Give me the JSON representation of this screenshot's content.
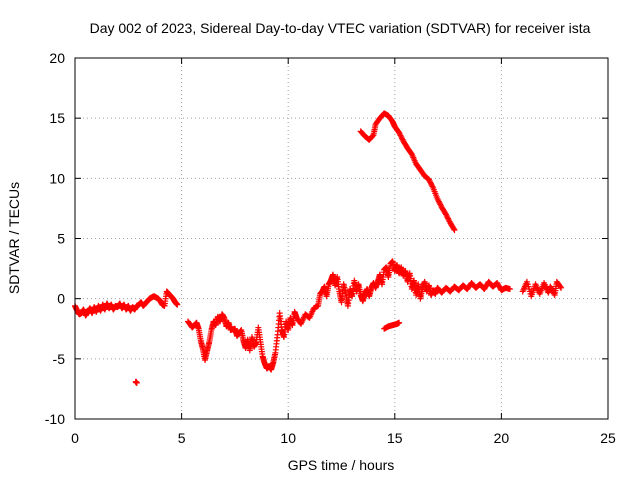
{
  "chart_data": {
    "type": "scatter",
    "title": "Day 002 of 2023, Sidereal Day-to-day VTEC variation (SDTVAR) for receiver ista",
    "xlabel": "GPS time / hours",
    "ylabel": "SDTVAR / TECUs",
    "xlim": [
      0,
      25
    ],
    "ylim": [
      -10,
      20
    ],
    "xticks": [
      0,
      5,
      10,
      15,
      20,
      25
    ],
    "yticks": [
      -10,
      -5,
      0,
      5,
      10,
      15,
      20
    ],
    "grid": true,
    "marker": "+",
    "color": "#ff0000",
    "series": [
      {
        "name": "SDTVAR",
        "points": [
          [
            0.0,
            -0.6
          ],
          [
            0.1,
            -1.0
          ],
          [
            0.2,
            -1.3
          ],
          [
            0.3,
            -1.2
          ],
          [
            0.4,
            -0.9
          ],
          [
            0.5,
            -1.4
          ],
          [
            0.6,
            -1.1
          ],
          [
            0.7,
            -0.8
          ],
          [
            0.8,
            -1.2
          ],
          [
            0.9,
            -0.7
          ],
          [
            1.0,
            -1.1
          ],
          [
            1.1,
            -0.6
          ],
          [
            1.2,
            -1.0
          ],
          [
            1.3,
            -0.5
          ],
          [
            1.4,
            -0.9
          ],
          [
            1.5,
            -0.4
          ],
          [
            1.6,
            -0.8
          ],
          [
            1.7,
            -0.5
          ],
          [
            1.8,
            -0.9
          ],
          [
            1.9,
            -0.6
          ],
          [
            2.0,
            -0.7
          ],
          [
            2.1,
            -0.4
          ],
          [
            2.2,
            -0.8
          ],
          [
            2.3,
            -0.5
          ],
          [
            2.4,
            -0.9
          ],
          [
            2.5,
            -0.6
          ],
          [
            2.6,
            -1.0
          ],
          [
            2.7,
            -0.7
          ],
          [
            2.8,
            -0.9
          ],
          [
            2.9,
            -0.6
          ],
          [
            3.0,
            -0.5
          ],
          [
            3.1,
            -0.3
          ],
          [
            3.2,
            -0.6
          ],
          [
            3.3,
            -0.4
          ],
          [
            3.4,
            -0.2
          ],
          [
            3.5,
            0.0
          ],
          [
            3.6,
            0.1
          ],
          [
            3.7,
            0.2
          ],
          [
            3.8,
            0.1
          ],
          [
            3.9,
            0.0
          ],
          [
            4.0,
            -0.2
          ],
          [
            4.1,
            -0.5
          ],
          [
            4.2,
            -0.6
          ],
          [
            4.3,
            0.6
          ],
          [
            4.4,
            0.4
          ],
          [
            4.5,
            0.2
          ],
          [
            4.6,
            0.0
          ],
          [
            4.7,
            -0.3
          ],
          [
            4.8,
            -0.5
          ],
          [
            2.85,
            -6.9
          ],
          [
            2.9,
            -7.0
          ],
          [
            5.3,
            -1.9
          ],
          [
            5.5,
            -2.4
          ],
          [
            5.7,
            -2.0
          ],
          [
            5.8,
            -2.5
          ],
          [
            5.9,
            -3.5
          ],
          [
            6.0,
            -4.2
          ],
          [
            6.1,
            -5.1
          ],
          [
            6.2,
            -4.3
          ],
          [
            6.3,
            -3.6
          ],
          [
            6.4,
            -2.6
          ],
          [
            6.5,
            -1.9
          ],
          [
            6.6,
            -2.2
          ],
          [
            6.7,
            -1.5
          ],
          [
            6.8,
            -1.9
          ],
          [
            6.9,
            -1.3
          ],
          [
            7.0,
            -1.6
          ],
          [
            7.1,
            -2.3
          ],
          [
            7.2,
            -2.0
          ],
          [
            7.3,
            -2.6
          ],
          [
            7.5,
            -2.5
          ],
          [
            7.6,
            -3.1
          ],
          [
            7.8,
            -2.6
          ],
          [
            7.9,
            -3.5
          ],
          [
            8.0,
            -4.1
          ],
          [
            8.1,
            -3.4
          ],
          [
            8.2,
            -4.3
          ],
          [
            8.3,
            -3.2
          ],
          [
            8.4,
            -4.0
          ],
          [
            8.5,
            -3.6
          ],
          [
            8.6,
            -2.4
          ],
          [
            8.7,
            -3.6
          ],
          [
            8.8,
            -4.8
          ],
          [
            8.9,
            -5.4
          ],
          [
            9.0,
            -5.8
          ],
          [
            9.1,
            -5.6
          ],
          [
            9.2,
            -5.9
          ],
          [
            9.3,
            -5.3
          ],
          [
            9.4,
            -4.5
          ],
          [
            9.5,
            -3.0
          ],
          [
            9.6,
            -1.2
          ],
          [
            9.7,
            -2.6
          ],
          [
            9.8,
            -3.2
          ],
          [
            9.9,
            -1.9
          ],
          [
            10.0,
            -2.6
          ],
          [
            10.1,
            -1.6
          ],
          [
            10.2,
            -2.2
          ],
          [
            10.3,
            -1.1
          ],
          [
            10.4,
            -1.6
          ],
          [
            10.6,
            -2.1
          ],
          [
            10.8,
            -1.3
          ],
          [
            11.0,
            -1.6
          ],
          [
            11.2,
            -0.8
          ],
          [
            11.4,
            -0.6
          ],
          [
            11.5,
            0.4
          ],
          [
            11.6,
            0.6
          ],
          [
            11.7,
            1.0
          ],
          [
            11.8,
            0.2
          ],
          [
            11.9,
            1.2
          ],
          [
            12.0,
            1.5
          ],
          [
            12.1,
            2.0
          ],
          [
            12.2,
            1.1
          ],
          [
            12.3,
            1.8
          ],
          [
            12.4,
            0.6
          ],
          [
            12.5,
            -0.3
          ],
          [
            12.6,
            1.2
          ],
          [
            12.7,
            0.4
          ],
          [
            12.8,
            -0.6
          ],
          [
            12.9,
            0.8
          ],
          [
            13.0,
            0.2
          ],
          [
            13.1,
            1.5
          ],
          [
            13.2,
            0.6
          ],
          [
            13.3,
            1.2
          ],
          [
            13.4,
            0.3
          ],
          [
            13.5,
            -0.2
          ],
          [
            13.6,
            0.4
          ],
          [
            13.7,
            0.8
          ],
          [
            13.8,
            0.2
          ],
          [
            13.9,
            0.9
          ],
          [
            14.0,
            1.3
          ],
          [
            14.1,
            0.9
          ],
          [
            14.2,
            1.4
          ],
          [
            14.3,
            2.0
          ],
          [
            14.4,
            1.2
          ],
          [
            14.5,
            2.4
          ],
          [
            14.6,
            2.6
          ],
          [
            14.7,
            1.8
          ],
          [
            14.8,
            2.9
          ],
          [
            14.9,
            3.1
          ],
          [
            15.0,
            2.3
          ],
          [
            15.1,
            2.8
          ],
          [
            15.2,
            2.1
          ],
          [
            15.3,
            2.6
          ],
          [
            15.4,
            1.9
          ],
          [
            15.5,
            2.3
          ],
          [
            15.6,
            1.4
          ],
          [
            15.7,
            2.1
          ],
          [
            15.8,
            0.8
          ],
          [
            15.9,
            1.5
          ],
          [
            16.0,
            0.3
          ],
          [
            16.1,
            1.2
          ],
          [
            16.2,
            0.0
          ],
          [
            16.3,
            0.9
          ],
          [
            16.4,
            1.4
          ],
          [
            16.5,
            0.6
          ],
          [
            16.6,
            1.1
          ],
          [
            16.7,
            0.3
          ],
          [
            16.8,
            0.7
          ],
          [
            16.9,
            0.4
          ],
          [
            17.0,
            0.9
          ],
          [
            17.2,
            0.5
          ],
          [
            17.4,
            0.9
          ],
          [
            17.6,
            0.6
          ],
          [
            17.8,
            1.0
          ],
          [
            18.0,
            0.7
          ],
          [
            18.2,
            1.1
          ],
          [
            18.4,
            0.8
          ],
          [
            18.6,
            1.3
          ],
          [
            18.8,
            0.9
          ],
          [
            19.0,
            1.2
          ],
          [
            19.2,
            0.8
          ],
          [
            19.4,
            1.4
          ],
          [
            19.6,
            1.0
          ],
          [
            19.8,
            1.3
          ],
          [
            20.0,
            0.7
          ],
          [
            20.2,
            0.9
          ],
          [
            20.4,
            0.8
          ],
          [
            14.5,
            -2.5
          ],
          [
            14.7,
            -2.3
          ],
          [
            14.9,
            -2.2
          ],
          [
            15.1,
            -2.1
          ],
          [
            15.2,
            -2.0
          ],
          [
            21.0,
            0.6
          ],
          [
            21.2,
            1.4
          ],
          [
            21.4,
            0.2
          ],
          [
            21.6,
            1.2
          ],
          [
            21.8,
            0.4
          ],
          [
            22.0,
            1.3
          ],
          [
            22.2,
            0.5
          ],
          [
            22.3,
            1.0
          ],
          [
            22.5,
            0.3
          ],
          [
            22.6,
            1.4
          ],
          [
            22.8,
            0.9
          ],
          [
            13.4,
            13.9
          ],
          [
            13.6,
            13.5
          ],
          [
            13.8,
            13.2
          ],
          [
            14.0,
            13.6
          ],
          [
            14.1,
            14.5
          ],
          [
            14.3,
            15.0
          ],
          [
            14.5,
            15.4
          ],
          [
            14.7,
            15.2
          ],
          [
            14.9,
            14.7
          ],
          [
            15.0,
            14.3
          ],
          [
            15.2,
            13.8
          ],
          [
            15.4,
            13.1
          ],
          [
            15.6,
            12.5
          ],
          [
            15.8,
            12.0
          ],
          [
            16.0,
            11.2
          ],
          [
            16.2,
            10.7
          ],
          [
            16.4,
            10.2
          ],
          [
            16.6,
            9.9
          ],
          [
            16.8,
            9.2
          ],
          [
            17.0,
            8.3
          ],
          [
            17.2,
            7.6
          ],
          [
            17.4,
            7.0
          ],
          [
            17.6,
            6.3
          ],
          [
            17.8,
            5.7
          ]
        ]
      }
    ]
  }
}
